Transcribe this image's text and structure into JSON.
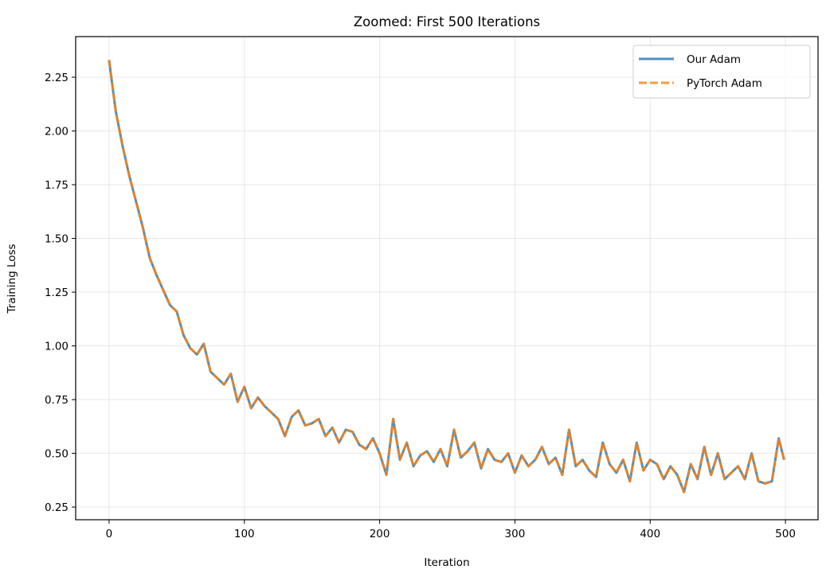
{
  "chart_data": {
    "type": "line",
    "title": "Zoomed: First 500 Iterations",
    "xlabel": "Iteration",
    "ylabel": "Training Loss",
    "xlim": [
      -24.7,
      524.1
    ],
    "ylim": [
      0.191,
      2.439
    ],
    "xticks": [
      0,
      100,
      200,
      300,
      400,
      500
    ],
    "yticks": [
      0.25,
      0.5,
      0.75,
      1.0,
      1.25,
      1.5,
      1.75,
      2.0,
      2.25
    ],
    "ytick_labels": [
      "0.25",
      "0.50",
      "0.75",
      "1.00",
      "1.25",
      "1.50",
      "1.75",
      "2.00",
      "2.25"
    ],
    "grid": true,
    "legend_placement": "top-right",
    "x": [
      0,
      5,
      10,
      15,
      20,
      25,
      30,
      35,
      40,
      45,
      50,
      55,
      60,
      65,
      70,
      75,
      80,
      85,
      90,
      95,
      100,
      105,
      110,
      115,
      120,
      125,
      130,
      135,
      140,
      145,
      150,
      155,
      160,
      165,
      170,
      175,
      180,
      185,
      190,
      195,
      200,
      205,
      210,
      215,
      220,
      225,
      230,
      235,
      240,
      245,
      250,
      255,
      260,
      265,
      270,
      275,
      280,
      285,
      290,
      295,
      300,
      305,
      310,
      315,
      320,
      325,
      330,
      335,
      340,
      345,
      350,
      355,
      360,
      365,
      370,
      375,
      380,
      385,
      390,
      395,
      400,
      405,
      410,
      415,
      420,
      425,
      430,
      435,
      440,
      445,
      450,
      455,
      460,
      465,
      470,
      475,
      480,
      485,
      490,
      495,
      499
    ],
    "series": [
      {
        "name": "Our Adam",
        "color": "#1f77b4",
        "style": "solid",
        "values": [
          2.33,
          2.09,
          1.93,
          1.79,
          1.67,
          1.55,
          1.41,
          1.33,
          1.26,
          1.19,
          1.16,
          1.05,
          0.99,
          0.96,
          1.01,
          0.88,
          0.85,
          0.82,
          0.87,
          0.74,
          0.81,
          0.71,
          0.76,
          0.72,
          0.69,
          0.66,
          0.58,
          0.67,
          0.7,
          0.63,
          0.64,
          0.66,
          0.58,
          0.62,
          0.55,
          0.61,
          0.6,
          0.54,
          0.52,
          0.57,
          0.5,
          0.4,
          0.66,
          0.47,
          0.55,
          0.44,
          0.49,
          0.51,
          0.46,
          0.52,
          0.44,
          0.61,
          0.48,
          0.51,
          0.55,
          0.43,
          0.52,
          0.47,
          0.46,
          0.5,
          0.41,
          0.49,
          0.44,
          0.47,
          0.53,
          0.45,
          0.48,
          0.4,
          0.61,
          0.44,
          0.47,
          0.42,
          0.39,
          0.55,
          0.45,
          0.41,
          0.47,
          0.37,
          0.55,
          0.42,
          0.47,
          0.45,
          0.38,
          0.44,
          0.4,
          0.32,
          0.45,
          0.38,
          0.53,
          0.4,
          0.5,
          0.38,
          0.41,
          0.44,
          0.38,
          0.5,
          0.37,
          0.36,
          0.37,
          0.57,
          0.47
        ]
      },
      {
        "name": "PyTorch Adam",
        "color": "#ff7f0e",
        "style": "dashed",
        "values": [
          2.33,
          2.09,
          1.93,
          1.79,
          1.67,
          1.55,
          1.41,
          1.33,
          1.26,
          1.19,
          1.16,
          1.05,
          0.99,
          0.96,
          1.01,
          0.88,
          0.85,
          0.82,
          0.87,
          0.74,
          0.81,
          0.71,
          0.76,
          0.72,
          0.69,
          0.66,
          0.58,
          0.67,
          0.7,
          0.63,
          0.64,
          0.66,
          0.58,
          0.62,
          0.55,
          0.61,
          0.6,
          0.54,
          0.52,
          0.57,
          0.5,
          0.4,
          0.66,
          0.47,
          0.55,
          0.44,
          0.49,
          0.51,
          0.46,
          0.52,
          0.44,
          0.61,
          0.48,
          0.51,
          0.55,
          0.43,
          0.52,
          0.47,
          0.46,
          0.5,
          0.41,
          0.49,
          0.44,
          0.47,
          0.53,
          0.45,
          0.48,
          0.4,
          0.61,
          0.44,
          0.47,
          0.42,
          0.39,
          0.55,
          0.45,
          0.41,
          0.47,
          0.37,
          0.55,
          0.42,
          0.47,
          0.45,
          0.38,
          0.44,
          0.4,
          0.32,
          0.45,
          0.38,
          0.53,
          0.4,
          0.5,
          0.38,
          0.41,
          0.44,
          0.38,
          0.5,
          0.37,
          0.36,
          0.37,
          0.57,
          0.47
        ]
      }
    ]
  }
}
